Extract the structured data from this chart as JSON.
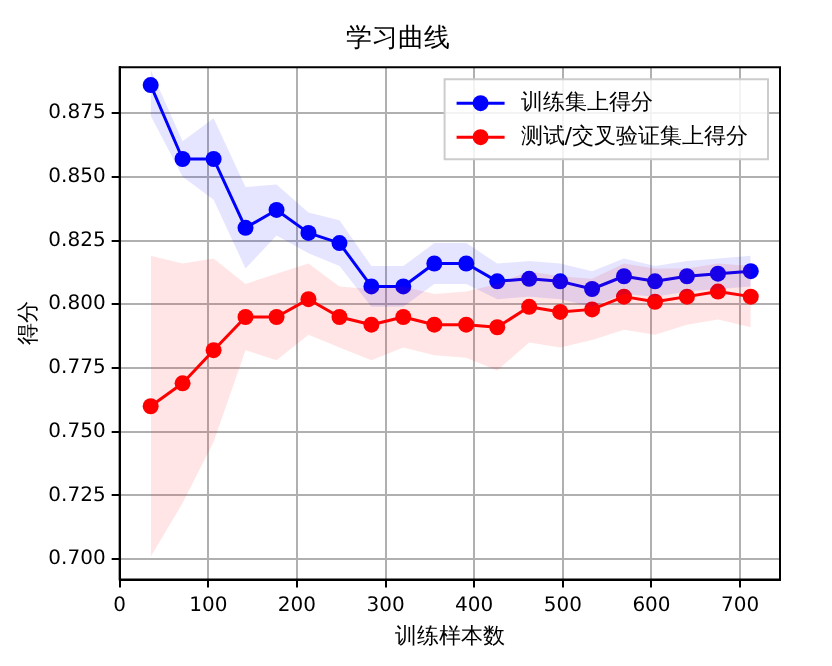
{
  "chart_data": {
    "type": "line",
    "title": "学习曲线",
    "xlabel": "训练样本数",
    "ylabel": "得分",
    "x": [
      35,
      71,
      106,
      142,
      177,
      213,
      248,
      284,
      320,
      355,
      391,
      426,
      462,
      497,
      533,
      569,
      604,
      640,
      675,
      712
    ],
    "series": [
      {
        "name": "训练集上得分",
        "color": "#0000ff",
        "values": [
          0.886,
          0.857,
          0.857,
          0.83,
          0.837,
          0.828,
          0.824,
          0.807,
          0.807,
          0.816,
          0.816,
          0.809,
          0.81,
          0.809,
          0.806,
          0.811,
          0.809,
          0.811,
          0.812,
          0.813
        ],
        "lower": [
          0.874,
          0.85,
          0.841,
          0.814,
          0.827,
          0.82,
          0.815,
          0.799,
          0.799,
          0.808,
          0.808,
          0.802,
          0.803,
          0.802,
          0.799,
          0.804,
          0.803,
          0.805,
          0.806,
          0.807
        ],
        "upper": [
          0.892,
          0.864,
          0.873,
          0.846,
          0.847,
          0.836,
          0.833,
          0.815,
          0.815,
          0.824,
          0.824,
          0.816,
          0.817,
          0.816,
          0.813,
          0.818,
          0.815,
          0.817,
          0.818,
          0.819
        ]
      },
      {
        "name": "测试/交叉验证集上得分",
        "color": "#ff0000",
        "values": [
          0.76,
          0.769,
          0.782,
          0.795,
          0.795,
          0.802,
          0.795,
          0.792,
          0.795,
          0.792,
          0.792,
          0.791,
          0.799,
          0.797,
          0.798,
          0.803,
          0.801,
          0.803,
          0.805,
          0.803
        ],
        "lower": [
          0.701,
          0.722,
          0.746,
          0.782,
          0.778,
          0.788,
          0.783,
          0.778,
          0.783,
          0.78,
          0.779,
          0.774,
          0.785,
          0.783,
          0.786,
          0.79,
          0.788,
          0.792,
          0.794,
          0.791
        ],
        "upper": [
          0.819,
          0.816,
          0.818,
          0.808,
          0.812,
          0.816,
          0.807,
          0.806,
          0.807,
          0.804,
          0.805,
          0.808,
          0.813,
          0.811,
          0.81,
          0.816,
          0.814,
          0.814,
          0.816,
          0.815
        ]
      }
    ],
    "xlim": [
      0,
      745
    ],
    "ylim": [
      0.692,
      0.893
    ],
    "xticks": [
      0,
      100,
      200,
      300,
      400,
      500,
      600,
      700
    ],
    "yticks": [
      {
        "value": 0.7,
        "label": "0.700"
      },
      {
        "value": 0.725,
        "label": "0.725"
      },
      {
        "value": 0.75,
        "label": "0.750"
      },
      {
        "value": 0.775,
        "label": "0.775"
      },
      {
        "value": 0.8,
        "label": "0.800"
      },
      {
        "value": 0.825,
        "label": "0.825"
      },
      {
        "value": 0.85,
        "label": "0.850"
      },
      {
        "value": 0.875,
        "label": "0.875"
      }
    ],
    "grid": true,
    "legend": "top right",
    "marker": "circle",
    "line_style": "solid"
  }
}
